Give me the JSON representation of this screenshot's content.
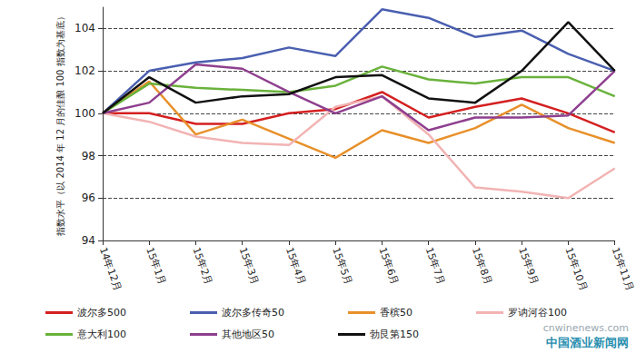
{
  "chart_data": {
    "type": "line",
    "y_label": "指数水平（以 2014 年 12 月的佳酿 100 指数为基底）",
    "categories": [
      "14年12月",
      "15年1月",
      "15年2月",
      "15年3月",
      "15年4月",
      "15年5月",
      "15年6月",
      "15年7月",
      "15年8月",
      "15年9月",
      "15年10月",
      "15年11月"
    ],
    "series": [
      {
        "name": "波尔多500",
        "color": "#d42020",
        "values": [
          100,
          100.0,
          99.5,
          99.5,
          100.0,
          100.2,
          101.0,
          99.8,
          100.3,
          100.7,
          100.0,
          99.1
        ]
      },
      {
        "name": "波尔多传奇50",
        "color": "#4a5fb0",
        "values": [
          100,
          102.0,
          102.4,
          102.6,
          103.1,
          102.7,
          104.9,
          104.5,
          103.6,
          103.9,
          102.8,
          102.0
        ]
      },
      {
        "name": "香槟50",
        "color": "#e8902a",
        "values": [
          100,
          101.5,
          99.0,
          99.7,
          98.8,
          97.9,
          99.2,
          98.6,
          99.3,
          100.4,
          99.3,
          98.6
        ]
      },
      {
        "name": "罗讷河谷100",
        "color": "#f2b3b3",
        "values": [
          100,
          99.6,
          98.9,
          98.6,
          98.5,
          100.3,
          100.8,
          99.0,
          96.5,
          96.3,
          96.0,
          97.4
        ]
      },
      {
        "name": "意大利100",
        "color": "#6ab23b",
        "values": [
          100,
          101.4,
          101.2,
          101.1,
          101.0,
          101.3,
          102.2,
          101.6,
          101.4,
          101.7,
          101.7,
          100.8
        ]
      },
      {
        "name": "其他地区50",
        "color": "#8e3f8e",
        "values": [
          100,
          100.5,
          102.3,
          102.1,
          101.0,
          100.0,
          100.8,
          99.2,
          99.8,
          99.8,
          99.9,
          102.0
        ]
      },
      {
        "name": "勃艮第150",
        "color": "#111111",
        "values": [
          100,
          101.7,
          100.5,
          100.8,
          100.9,
          101.7,
          101.8,
          100.7,
          100.5,
          102.0,
          104.3,
          102.0
        ]
      }
    ],
    "ylim": [
      94,
      105
    ],
    "yticks": [
      94,
      96,
      98,
      100,
      102,
      104
    ],
    "grid": true,
    "legend": "bottom",
    "annotations": [
      "cnwinenews.com",
      "中国酒业新闻网"
    ]
  }
}
